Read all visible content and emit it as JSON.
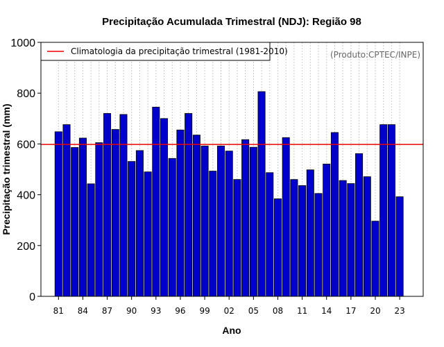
{
  "chart_data": {
    "type": "bar",
    "title": "Precipitação Acumulada Trimestral (NDJ): Região 98",
    "xlabel": "Ano",
    "ylabel": "Precipitação trimestral (mm)",
    "source_note": "(Produto:CPTEC/INPE)",
    "ylim": [
      0,
      1000
    ],
    "yticks": [
      "0",
      "200",
      "400",
      "600",
      "800",
      "1000"
    ],
    "x_tick_labels": [
      "81",
      "84",
      "87",
      "90",
      "93",
      "96",
      "99",
      "02",
      "05",
      "08",
      "11",
      "14",
      "17",
      "20",
      "23"
    ],
    "grid": "vertical dotted",
    "bar_color": "#0000cc",
    "categories": [
      "1981",
      "1982",
      "1983",
      "1984",
      "1985",
      "1986",
      "1987",
      "1988",
      "1989",
      "1990",
      "1991",
      "1992",
      "1993",
      "1994",
      "1995",
      "1996",
      "1997",
      "1998",
      "1999",
      "2000",
      "2001",
      "2002",
      "2003",
      "2004",
      "2005",
      "2006",
      "2007",
      "2008",
      "2009",
      "2010",
      "2011",
      "2012",
      "2013",
      "2014",
      "2015",
      "2016",
      "2017",
      "2018",
      "2019",
      "2020",
      "2021",
      "2022",
      "2023"
    ],
    "values": [
      648,
      676,
      586,
      623,
      443,
      605,
      720,
      657,
      716,
      531,
      574,
      490,
      745,
      700,
      543,
      655,
      720,
      635,
      592,
      493,
      592,
      572,
      460,
      617,
      587,
      806,
      487,
      384,
      625,
      460,
      436,
      498,
      405,
      521,
      645,
      456,
      444,
      562,
      471,
      296,
      676,
      676,
      392
    ],
    "reference_line": {
      "label": "Climatologia da precipitação trimestral (1981-2010)",
      "value": 598,
      "color": "#ee0000"
    },
    "legend_position": "top-left"
  }
}
